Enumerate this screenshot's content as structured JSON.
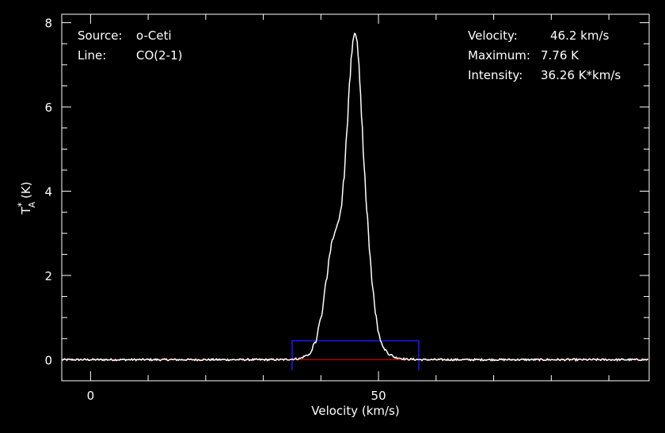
{
  "chart_data": {
    "type": "line",
    "xlabel": "Velocity (km/s)",
    "ylabel_main": "T",
    "ylabel_sup": "*",
    "ylabel_sub": "A",
    "ylabel_unit": "(K)",
    "xlim": [
      -5,
      97
    ],
    "ylim": [
      -0.5,
      8.2
    ],
    "xticks_labeled": [
      0,
      50
    ],
    "xtick_labels": [
      "0",
      "50"
    ],
    "yticks_labeled": [
      0,
      2,
      4,
      6,
      8
    ],
    "ytick_labels": [
      "0",
      "2",
      "4",
      "6",
      "8"
    ],
    "series": [
      {
        "color": "#ffffff",
        "x": [
          -5,
          33,
          36,
          38,
          39,
          40,
          41,
          41.5,
          42,
          42.5,
          43,
          43.5,
          44,
          44.5,
          45,
          45.3,
          45.6,
          45.9,
          46.2,
          46.5,
          46.8,
          47.1,
          47.5,
          48,
          48.5,
          49,
          49.5,
          50,
          50.5,
          51,
          52,
          53,
          55,
          58,
          97
        ],
        "y": [
          0,
          0,
          0.02,
          0.12,
          0.4,
          0.98,
          1.9,
          2.5,
          2.85,
          3.05,
          3.25,
          3.55,
          4.3,
          5.4,
          6.6,
          7.2,
          7.6,
          7.76,
          7.65,
          7.2,
          6.5,
          5.7,
          4.6,
          3.5,
          2.5,
          1.7,
          1.1,
          0.65,
          0.4,
          0.25,
          0.12,
          0.05,
          0.01,
          0,
          0
        ]
      }
    ],
    "baseline": {
      "y": 0,
      "color": "#cc0000"
    },
    "window_box": {
      "x_start": 35,
      "x_end": 57,
      "y_top": 0.45,
      "y_bottom": -0.25,
      "color": "#1a1aff"
    }
  },
  "info_left": {
    "source_label": "Source:",
    "source_value": "o-Ceti",
    "line_label": "Line:",
    "line_value": "CO(2-1)"
  },
  "info_right": {
    "velocity_label": "Velocity:",
    "velocity_value": "46.2 km/s",
    "maximum_label": "Maximum:",
    "maximum_value": "7.76 K",
    "intensity_label": "Intensity:",
    "intensity_value": "36.26 K*km/s"
  }
}
